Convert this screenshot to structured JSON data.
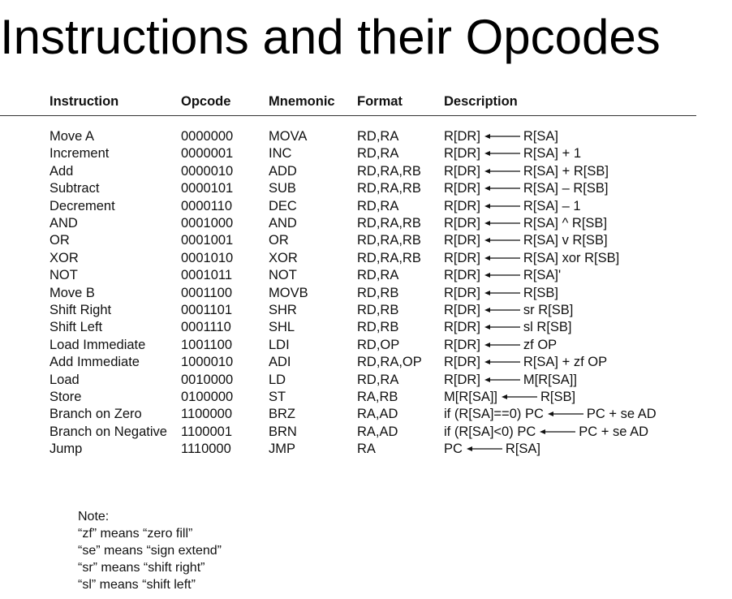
{
  "title": "Instructions and their Opcodes",
  "headers": [
    "Instruction",
    "Opcode",
    "Mnemonic",
    "Format",
    "Description"
  ],
  "rows": [
    {
      "instruction": "Move A",
      "opcode": "0000000",
      "mnemonic": "MOVA",
      "format": "RD,RA",
      "lhs": "R[DR]",
      "rhs": "R[SA]"
    },
    {
      "instruction": "Increment",
      "opcode": "0000001",
      "mnemonic": "INC",
      "format": "RD,RA",
      "lhs": "R[DR]",
      "rhs": "R[SA] + 1"
    },
    {
      "instruction": "Add",
      "opcode": "0000010",
      "mnemonic": "ADD",
      "format": "RD,RA,RB",
      "lhs": "R[DR]",
      "rhs": "R[SA] + R[SB]"
    },
    {
      "instruction": "Subtract",
      "opcode": "0000101",
      "mnemonic": "SUB",
      "format": "RD,RA,RB",
      "lhs": "R[DR]",
      "rhs": "R[SA] – R[SB]"
    },
    {
      "instruction": "Decrement",
      "opcode": "0000110",
      "mnemonic": "DEC",
      "format": "RD,RA",
      "lhs": "R[DR]",
      "rhs": "R[SA] – 1"
    },
    {
      "instruction": "AND",
      "opcode": "0001000",
      "mnemonic": "AND",
      "format": "RD,RA,RB",
      "lhs": "R[DR]",
      "rhs": "R[SA] ^ R[SB]"
    },
    {
      "instruction": "OR",
      "opcode": "0001001",
      "mnemonic": "OR",
      "format": "RD,RA,RB",
      "lhs": "R[DR]",
      "rhs": "R[SA] v R[SB]"
    },
    {
      "instruction": "XOR",
      "opcode": "0001010",
      "mnemonic": "XOR",
      "format": "RD,RA,RB",
      "lhs": "R[DR]",
      "rhs": "R[SA] xor R[SB]"
    },
    {
      "instruction": "NOT",
      "opcode": "0001011",
      "mnemonic": "NOT",
      "format": "RD,RA",
      "lhs": "R[DR]",
      "rhs": "R[SA]'"
    },
    {
      "instruction": "Move B",
      "opcode": "0001100",
      "mnemonic": "MOVB",
      "format": "RD,RB",
      "lhs": "R[DR]",
      "rhs": "R[SB]"
    },
    {
      "instruction": "Shift Right",
      "opcode": "0001101",
      "mnemonic": "SHR",
      "format": "RD,RB",
      "lhs": "R[DR]",
      "rhs": "sr R[SB]"
    },
    {
      "instruction": "Shift Left",
      "opcode": "0001110",
      "mnemonic": "SHL",
      "format": "RD,RB",
      "lhs": "R[DR]",
      "rhs": "sl R[SB]"
    },
    {
      "instruction": "Load Immediate",
      "opcode": "1001100",
      "mnemonic": "LDI",
      "format": "RD,OP",
      "lhs": "R[DR]",
      "rhs": "zf OP"
    },
    {
      "instruction": "Add Immediate",
      "opcode": "1000010",
      "mnemonic": "ADI",
      "format": "RD,RA,OP",
      "lhs": "R[DR]",
      "rhs": "R[SA] + zf OP"
    },
    {
      "instruction": "Load",
      "opcode": "0010000",
      "mnemonic": "LD",
      "format": "RD,RA",
      "lhs": "R[DR]",
      "rhs": "M[R[SA]]"
    },
    {
      "instruction": "Store",
      "opcode": "0100000",
      "mnemonic": "ST",
      "format": "RA,RB",
      "lhs": "M[R[SA]]",
      "rhs": "R[SB]"
    },
    {
      "instruction": "Branch on Zero",
      "opcode": "1100000",
      "mnemonic": "BRZ",
      "format": "RA,AD",
      "lhs": "if (R[SA]==0) PC",
      "rhs": "PC + se AD"
    },
    {
      "instruction": "Branch on Negative",
      "opcode": "1100001",
      "mnemonic": "BRN",
      "format": "RA,AD",
      "lhs": "if (R[SA]<0) PC",
      "rhs": "PC + se AD"
    },
    {
      "instruction": "Jump",
      "opcode": "1110000",
      "mnemonic": "JMP",
      "format": "RA",
      "lhs": "PC",
      "rhs": "R[SA]"
    }
  ],
  "notes": [
    "Note:",
    "“zf” means “zero fill”",
    "“se” means “sign extend”",
    "“sr” means “shift right”",
    "“sl” means “shift left”"
  ]
}
